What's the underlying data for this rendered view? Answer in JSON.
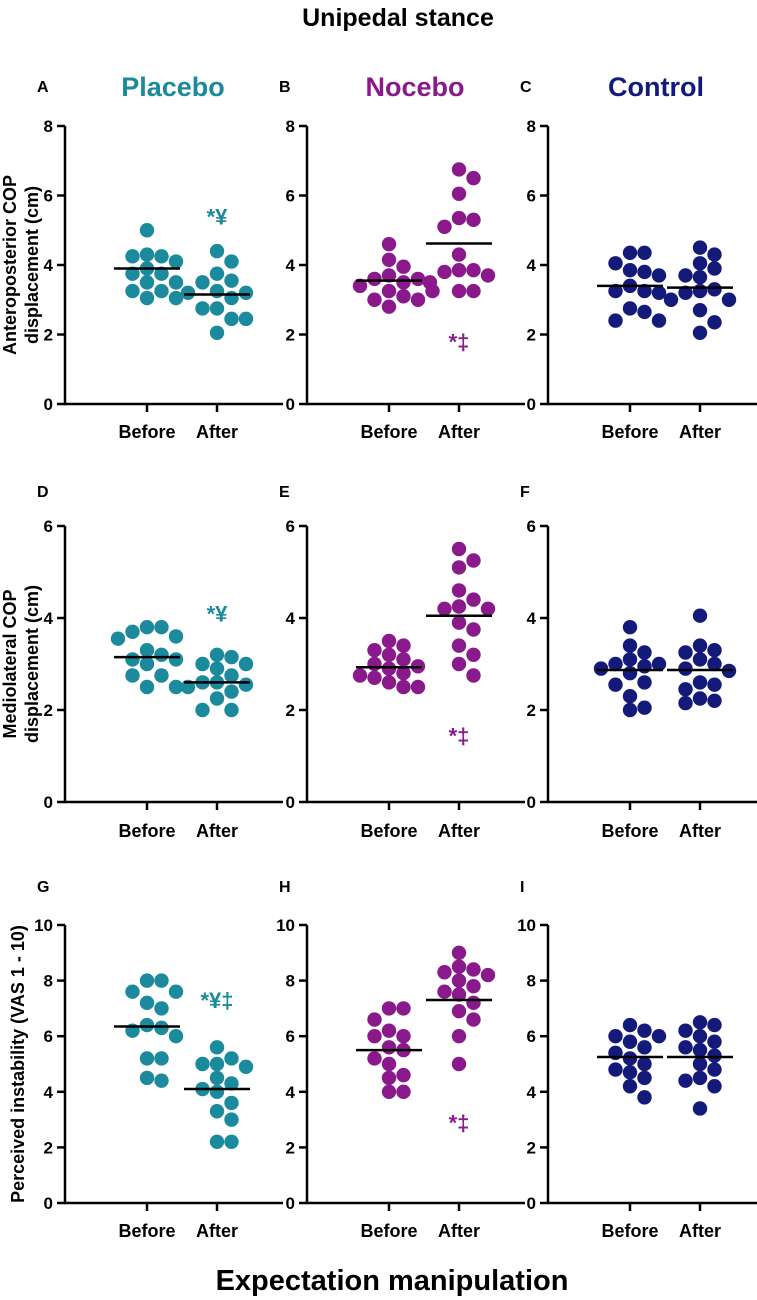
{
  "title": "Unipedal stance",
  "x_axis_title": "Expectation manipulation",
  "colors": {
    "placebo": "#1a8a9c",
    "nocebo": "#8a1a8c",
    "control": "#141a7a"
  },
  "groups": [
    {
      "name": "Placebo",
      "color": "#1a8a9c"
    },
    {
      "name": "Nocebo",
      "color": "#8a1a8c"
    },
    {
      "name": "Control",
      "color": "#141a7a"
    }
  ],
  "row_ylabels": [
    [
      "Anteroposterior COP",
      "displacement (cm)"
    ],
    [
      "Mediolateral COP",
      "displacement (cm)"
    ],
    [
      "Perceived instability (VAS 1 - 10)"
    ]
  ],
  "chart_data": [
    {
      "panel": "A",
      "group": "Placebo",
      "type": "scatter",
      "categories": [
        "Before",
        "After"
      ],
      "ylim": [
        0,
        8
      ],
      "yticks": [
        0,
        2,
        4,
        6,
        8
      ],
      "series": [
        {
          "name": "Before",
          "mean": 3.9,
          "values": [
            5.0,
            4.3,
            4.25,
            4.25,
            4.1,
            3.9,
            3.75,
            3.75,
            3.5,
            3.5,
            3.25,
            3.25,
            3.05,
            3.05
          ]
        },
        {
          "name": "After",
          "mean": 3.15,
          "values": [
            4.4,
            4.1,
            3.75,
            3.55,
            3.5,
            3.25,
            3.2,
            3.2,
            3.05,
            2.75,
            2.75,
            2.45,
            2.45,
            2.05
          ]
        }
      ],
      "annotation": {
        "category": "After",
        "text": "*¥",
        "y": 5.4
      }
    },
    {
      "panel": "B",
      "group": "Nocebo",
      "type": "scatter",
      "categories": [
        "Before",
        "After"
      ],
      "ylim": [
        0,
        8
      ],
      "yticks": [
        0,
        2,
        4,
        6,
        8
      ],
      "series": [
        {
          "name": "Before",
          "mean": 3.55,
          "values": [
            4.6,
            4.15,
            3.95,
            3.7,
            3.6,
            3.6,
            3.5,
            3.4,
            3.25,
            3.25,
            3.1,
            3.0,
            3.0,
            2.8
          ]
        },
        {
          "name": "After",
          "mean": 4.62,
          "values": [
            6.75,
            6.5,
            6.05,
            5.35,
            5.3,
            5.1,
            4.3,
            3.85,
            3.85,
            3.8,
            3.7,
            3.5,
            3.25,
            3.25
          ]
        }
      ],
      "annotation": {
        "category": "After",
        "text": "*‡",
        "y": 1.8
      }
    },
    {
      "panel": "C",
      "group": "Control",
      "type": "scatter",
      "categories": [
        "Before",
        "After"
      ],
      "ylim": [
        0,
        8
      ],
      "yticks": [
        0,
        2,
        4,
        6,
        8
      ],
      "series": [
        {
          "name": "Before",
          "mean": 3.4,
          "values": [
            4.35,
            4.35,
            4.05,
            3.85,
            3.8,
            3.7,
            3.4,
            3.25,
            3.25,
            3.2,
            2.75,
            2.65,
            2.4,
            2.4
          ]
        },
        {
          "name": "After",
          "mean": 3.35,
          "values": [
            4.5,
            4.3,
            4.05,
            3.9,
            3.7,
            3.65,
            3.3,
            3.25,
            3.2,
            3.0,
            3.0,
            2.7,
            2.35,
            2.05
          ]
        }
      ]
    },
    {
      "panel": "D",
      "group": "Placebo",
      "type": "scatter",
      "categories": [
        "Before",
        "After"
      ],
      "ylim": [
        0,
        6
      ],
      "yticks": [
        0,
        2,
        4,
        6
      ],
      "series": [
        {
          "name": "Before",
          "mean": 3.15,
          "values": [
            3.8,
            3.8,
            3.7,
            3.6,
            3.55,
            3.3,
            3.2,
            3.1,
            3.1,
            3.0,
            2.75,
            2.75,
            2.5,
            2.5
          ]
        },
        {
          "name": "After",
          "mean": 2.6,
          "values": [
            3.2,
            3.15,
            3.0,
            3.0,
            2.9,
            2.75,
            2.6,
            2.6,
            2.55,
            2.5,
            2.4,
            2.25,
            2.0,
            2.0
          ]
        }
      ],
      "annotation": {
        "category": "After",
        "text": "*¥",
        "y": 4.1
      }
    },
    {
      "panel": "E",
      "group": "Nocebo",
      "type": "scatter",
      "categories": [
        "Before",
        "After"
      ],
      "ylim": [
        0,
        6
      ],
      "yticks": [
        0,
        2,
        4,
        6
      ],
      "series": [
        {
          "name": "Before",
          "mean": 2.93,
          "values": [
            3.5,
            3.4,
            3.3,
            3.2,
            3.1,
            3.0,
            2.95,
            2.9,
            2.8,
            2.75,
            2.7,
            2.6,
            2.5,
            2.5
          ]
        },
        {
          "name": "After",
          "mean": 4.05,
          "values": [
            5.5,
            5.25,
            5.1,
            4.6,
            4.4,
            4.25,
            4.2,
            4.2,
            3.9,
            3.75,
            3.4,
            3.2,
            3.0,
            2.75
          ]
        }
      ],
      "annotation": {
        "category": "After",
        "text": "*‡",
        "y": 1.45
      }
    },
    {
      "panel": "F",
      "group": "Control",
      "type": "scatter",
      "categories": [
        "Before",
        "After"
      ],
      "ylim": [
        0,
        6
      ],
      "yticks": [
        0,
        2,
        4,
        6
      ],
      "series": [
        {
          "name": "Before",
          "mean": 2.87,
          "values": [
            3.8,
            3.4,
            3.25,
            3.1,
            3.0,
            3.0,
            2.95,
            2.9,
            2.8,
            2.6,
            2.55,
            2.3,
            2.05,
            2.0
          ]
        },
        {
          "name": "After",
          "mean": 2.87,
          "values": [
            4.05,
            3.4,
            3.3,
            3.25,
            3.1,
            3.0,
            2.9,
            2.85,
            2.6,
            2.55,
            2.45,
            2.25,
            2.2,
            2.15
          ]
        }
      ]
    },
    {
      "panel": "G",
      "group": "Placebo",
      "type": "scatter",
      "categories": [
        "Before",
        "After"
      ],
      "ylim": [
        0,
        10
      ],
      "yticks": [
        0,
        2,
        4,
        6,
        8,
        10
      ],
      "series": [
        {
          "name": "Before",
          "mean": 6.35,
          "values": [
            8.0,
            8.0,
            7.6,
            7.6,
            7.2,
            7.0,
            6.4,
            6.3,
            6.2,
            6.0,
            5.2,
            5.2,
            4.5,
            4.4
          ]
        },
        {
          "name": "After",
          "mean": 4.1,
          "values": [
            5.6,
            5.2,
            5.0,
            5.0,
            4.9,
            4.5,
            4.3,
            4.1,
            4.0,
            3.6,
            3.3,
            3.0,
            2.2,
            2.2
          ]
        }
      ],
      "annotation": {
        "category": "After",
        "text": "*¥‡",
        "y": 7.3
      }
    },
    {
      "panel": "H",
      "group": "Nocebo",
      "type": "scatter",
      "categories": [
        "Before",
        "After"
      ],
      "ylim": [
        0,
        10
      ],
      "yticks": [
        0,
        2,
        4,
        6,
        8,
        10
      ],
      "series": [
        {
          "name": "Before",
          "mean": 5.5,
          "values": [
            7.0,
            7.0,
            6.6,
            6.2,
            6.0,
            6.0,
            5.6,
            5.5,
            5.2,
            5.0,
            4.6,
            4.5,
            4.0,
            4.0
          ]
        },
        {
          "name": "After",
          "mean": 7.3,
          "values": [
            9.0,
            8.5,
            8.4,
            8.3,
            8.2,
            8.0,
            7.8,
            7.6,
            7.5,
            7.2,
            6.9,
            6.6,
            6.0,
            5.0
          ]
        }
      ],
      "annotation": {
        "category": "After",
        "text": "*‡",
        "y": 2.9
      }
    },
    {
      "panel": "I",
      "group": "Control",
      "type": "scatter",
      "categories": [
        "Before",
        "After"
      ],
      "ylim": [
        0,
        10
      ],
      "yticks": [
        0,
        2,
        4,
        6,
        8,
        10
      ],
      "series": [
        {
          "name": "Before",
          "mean": 5.25,
          "values": [
            6.4,
            6.2,
            6.0,
            6.0,
            5.8,
            5.6,
            5.4,
            5.2,
            5.0,
            4.8,
            4.7,
            4.5,
            4.2,
            3.8
          ]
        },
        {
          "name": "After",
          "mean": 5.25,
          "values": [
            6.5,
            6.4,
            6.2,
            6.0,
            5.8,
            5.6,
            5.5,
            5.3,
            5.0,
            4.8,
            4.5,
            4.4,
            4.2,
            3.4
          ]
        }
      ]
    }
  ]
}
